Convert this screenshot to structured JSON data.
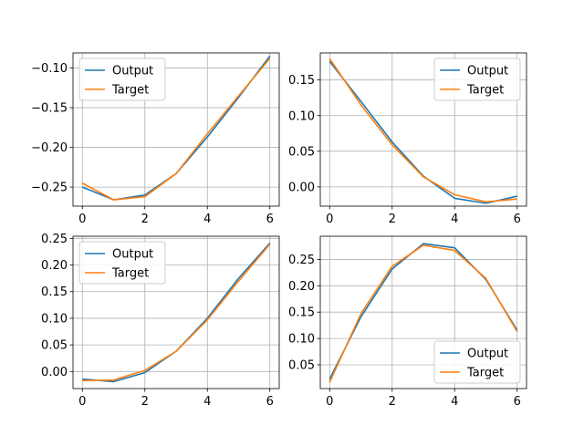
{
  "chart_data": [
    {
      "type": "line",
      "x": [
        0,
        1,
        2,
        3,
        4,
        5,
        6
      ],
      "xlim": [
        -0.3,
        6.3
      ],
      "ylim": [
        -0.274,
        -0.081
      ],
      "xticks": [
        0,
        2,
        4,
        6
      ],
      "xtick_labels": [
        "0",
        "2",
        "4",
        "6"
      ],
      "yticks": [
        -0.25,
        -0.2,
        -0.15,
        -0.1
      ],
      "ytick_labels": [
        "−0.25",
        "−0.20",
        "−0.15",
        "−0.10"
      ],
      "grid": true,
      "legend_position": "top-left",
      "series": [
        {
          "name": "Output",
          "color": "#1f77b4",
          "values": [
            -0.25,
            -0.266,
            -0.26,
            -0.233,
            -0.187,
            -0.137,
            -0.085
          ]
        },
        {
          "name": "Target",
          "color": "#ff7f0e",
          "values": [
            -0.245,
            -0.266,
            -0.262,
            -0.233,
            -0.183,
            -0.135,
            -0.088
          ]
        }
      ]
    },
    {
      "type": "line",
      "x": [
        0,
        1,
        2,
        3,
        4,
        5,
        6
      ],
      "xlim": [
        -0.3,
        6.3
      ],
      "ylim": [
        -0.027,
        0.188
      ],
      "xticks": [
        0,
        2,
        4,
        6
      ],
      "xtick_labels": [
        "0",
        "2",
        "4",
        "6"
      ],
      "yticks": [
        0.0,
        0.05,
        0.1,
        0.15
      ],
      "ytick_labels": [
        "0.00",
        "0.05",
        "0.10",
        "0.15"
      ],
      "grid": true,
      "legend_position": "top-right",
      "series": [
        {
          "name": "Output",
          "color": "#1f77b4",
          "values": [
            0.176,
            0.12,
            0.063,
            0.015,
            -0.016,
            -0.023,
            -0.013
          ]
        },
        {
          "name": "Target",
          "color": "#ff7f0e",
          "values": [
            0.18,
            0.115,
            0.059,
            0.014,
            -0.011,
            -0.021,
            -0.017
          ]
        }
      ]
    },
    {
      "type": "line",
      "x": [
        0,
        1,
        2,
        3,
        4,
        5,
        6
      ],
      "xlim": [
        -0.3,
        6.3
      ],
      "ylim": [
        -0.032,
        0.254
      ],
      "xticks": [
        0,
        2,
        4,
        6
      ],
      "xtick_labels": [
        "0",
        "2",
        "4",
        "6"
      ],
      "yticks": [
        0.0,
        0.05,
        0.1,
        0.15,
        0.2,
        0.25
      ],
      "ytick_labels": [
        "0.00",
        "0.05",
        "0.10",
        "0.15",
        "0.20",
        "0.25"
      ],
      "grid": true,
      "legend_position": "top-left",
      "series": [
        {
          "name": "Output",
          "color": "#1f77b4",
          "values": [
            -0.014,
            -0.019,
            -0.002,
            0.038,
            0.1,
            0.175,
            0.241
          ]
        },
        {
          "name": "Target",
          "color": "#ff7f0e",
          "values": [
            -0.017,
            -0.016,
            0.002,
            0.038,
            0.097,
            0.17,
            0.239
          ]
        }
      ]
    },
    {
      "type": "line",
      "x": [
        0,
        1,
        2,
        3,
        4,
        5,
        6
      ],
      "xlim": [
        -0.3,
        6.3
      ],
      "ylim": [
        0.005,
        0.294
      ],
      "xticks": [
        0,
        2,
        4,
        6
      ],
      "xtick_labels": [
        "0",
        "2",
        "4",
        "6"
      ],
      "yticks": [
        0.05,
        0.1,
        0.15,
        0.2,
        0.25
      ],
      "ytick_labels": [
        "0.05",
        "0.10",
        "0.15",
        "0.20",
        "0.25"
      ],
      "grid": true,
      "legend_position": "bottom-right",
      "series": [
        {
          "name": "Output",
          "color": "#1f77b4",
          "values": [
            0.023,
            0.141,
            0.232,
            0.28,
            0.272,
            0.212,
            0.116
          ]
        },
        {
          "name": "Target",
          "color": "#ff7f0e",
          "values": [
            0.017,
            0.147,
            0.237,
            0.277,
            0.267,
            0.214,
            0.113
          ]
        }
      ]
    }
  ]
}
